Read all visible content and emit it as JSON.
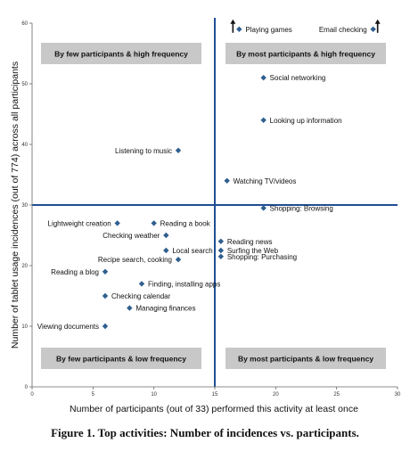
{
  "chart_data": {
    "type": "scatter",
    "xlabel": "Number of participants (out of 33) performed this activity at least once",
    "ylabel": "Number of tablet usage incidences (out of 774) across all participants",
    "xlim": [
      0,
      30
    ],
    "ylim": [
      0,
      60
    ],
    "xticks": [
      0,
      5,
      10,
      15,
      20,
      25,
      30
    ],
    "yticks": [
      0,
      10,
      20,
      30,
      40,
      50,
      60
    ],
    "grid": false,
    "divider_x": 15,
    "divider_y": 30,
    "colors": {
      "point": "#2f5f8f",
      "divider": "#1f4e94",
      "quadrant_box": "#c8c8c8"
    },
    "quadrants": [
      {
        "label": "By few participants & high frequency",
        "position": "top-left"
      },
      {
        "label": "By most participants & high frequency",
        "position": "top-right"
      },
      {
        "label": "By few participants & low frequency",
        "position": "bottom-left"
      },
      {
        "label": "By most participants & low frequency",
        "position": "bottom-right"
      }
    ],
    "points": [
      {
        "label": "Playing games",
        "x": 17,
        "y": 59,
        "label_side": "right",
        "arrow": "left"
      },
      {
        "label": "Email checking",
        "x": 28,
        "y": 59,
        "label_side": "left",
        "arrow": "right"
      },
      {
        "label": "Social networking",
        "x": 19,
        "y": 51,
        "label_side": "right"
      },
      {
        "label": "Looking up information",
        "x": 19,
        "y": 44,
        "label_side": "right"
      },
      {
        "label": "Listening to music",
        "x": 12,
        "y": 39,
        "label_side": "left"
      },
      {
        "label": "Watching TV/videos",
        "x": 16,
        "y": 34,
        "label_side": "right"
      },
      {
        "label": "Shopping: Browsing",
        "x": 19,
        "y": 29.5,
        "label_side": "right"
      },
      {
        "label": "Lightweight creation",
        "x": 7,
        "y": 27,
        "label_side": "left"
      },
      {
        "label": "Reading a book",
        "x": 10,
        "y": 27,
        "label_side": "right"
      },
      {
        "label": "Checking weather",
        "x": 11,
        "y": 25,
        "label_side": "left"
      },
      {
        "label": "Local search",
        "x": 11,
        "y": 22.5,
        "label_side": "right"
      },
      {
        "label": "Recipe search, cooking",
        "x": 12,
        "y": 21,
        "label_side": "left"
      },
      {
        "label": "Reading news",
        "x": 15.5,
        "y": 24,
        "label_side": "right"
      },
      {
        "label": "Surfing the Web",
        "x": 15.5,
        "y": 22.5,
        "label_side": "right"
      },
      {
        "label": "Shopping: Purchasing",
        "x": 15.5,
        "y": 21.5,
        "label_side": "right"
      },
      {
        "label": "Reading a blog",
        "x": 6,
        "y": 19,
        "label_side": "left"
      },
      {
        "label": "Finding, installing apps",
        "x": 9,
        "y": 17,
        "label_side": "right"
      },
      {
        "label": "Checking calendar",
        "x": 6,
        "y": 15,
        "label_side": "right"
      },
      {
        "label": "Managing finances",
        "x": 8,
        "y": 13,
        "label_side": "right"
      },
      {
        "label": "Viewing documents",
        "x": 6,
        "y": 10,
        "label_side": "left"
      }
    ]
  },
  "caption": "Figure 1. Top activities: Number of incidences vs. participants."
}
